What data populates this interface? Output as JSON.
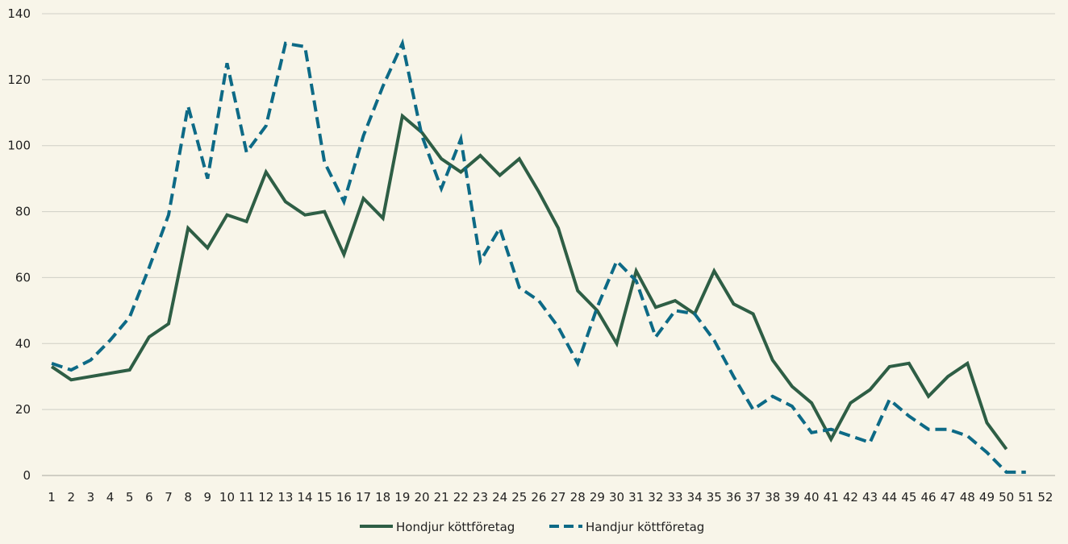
{
  "chart_data": {
    "type": "line",
    "title": "",
    "xlabel": "",
    "ylabel": "",
    "ylim": [
      0,
      140
    ],
    "yticks": [
      0,
      20,
      40,
      60,
      80,
      100,
      120,
      140
    ],
    "x": [
      1,
      2,
      3,
      4,
      5,
      6,
      7,
      8,
      9,
      10,
      11,
      12,
      13,
      14,
      15,
      16,
      17,
      18,
      19,
      20,
      21,
      22,
      23,
      24,
      25,
      26,
      27,
      28,
      29,
      30,
      31,
      32,
      33,
      34,
      35,
      36,
      37,
      38,
      39,
      40,
      41,
      42,
      43,
      44,
      45,
      46,
      47,
      48,
      49,
      50,
      51,
      52
    ],
    "grid": "horizontal",
    "legend_position": "bottom",
    "series": [
      {
        "name": "Hondjur köttföretag",
        "color": "#2e5e45",
        "style": "solid",
        "values": [
          33,
          29,
          30,
          31,
          32,
          42,
          46,
          75,
          69,
          79,
          77,
          92,
          83,
          79,
          80,
          67,
          84,
          78,
          109,
          104,
          96,
          92,
          97,
          91,
          96,
          86,
          75,
          56,
          50,
          40,
          62,
          51,
          53,
          49,
          62,
          52,
          49,
          35,
          27,
          22,
          11,
          22,
          26,
          33,
          34,
          24,
          30,
          34,
          16,
          8,
          null,
          null
        ]
      },
      {
        "name": "Handjur köttföretag",
        "color": "#0d6a86",
        "style": "dashed",
        "values": [
          34,
          32,
          35,
          41,
          48,
          63,
          79,
          112,
          90,
          125,
          98,
          106,
          131,
          130,
          95,
          83,
          103,
          118,
          131,
          103,
          87,
          102,
          65,
          75,
          57,
          53,
          45,
          34,
          51,
          65,
          59,
          42,
          50,
          49,
          41,
          30,
          20,
          24,
          21,
          13,
          14,
          12,
          10,
          23,
          18,
          14,
          14,
          12,
          7,
          1,
          1,
          null
        ]
      }
    ]
  }
}
